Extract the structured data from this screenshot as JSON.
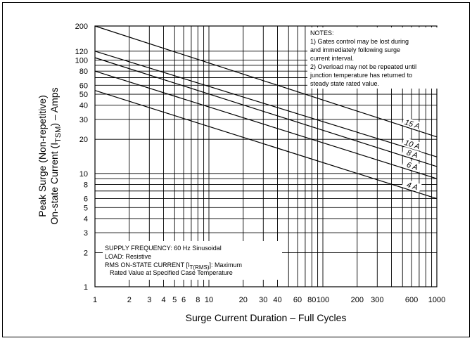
{
  "chart_data": {
    "type": "line",
    "x_scale": "log",
    "y_scale": "log",
    "xlim": [
      1,
      1000
    ],
    "ylim": [
      1,
      200
    ],
    "grid": true,
    "xlabel": "Surge Current Duration – Full Cycles",
    "ylabel_line1": "Peak Surge (Non-repetitive)",
    "ylabel_line2_prefix": "On-state Current (I",
    "ylabel_line2_sub": "TSM",
    "ylabel_line2_suffix": ") – Amps",
    "x_ticks": [
      1,
      2,
      3,
      4,
      5,
      6,
      8,
      10,
      20,
      30,
      40,
      60,
      80,
      100,
      200,
      300,
      600,
      1000
    ],
    "x_tick_labels": [
      "1",
      "2",
      "3",
      "4",
      "5",
      "6",
      "8",
      "10",
      "20",
      "30",
      "40",
      "60",
      "80",
      "100",
      "200",
      "300",
      "600",
      "1000"
    ],
    "y_ticks": [
      1,
      2,
      3,
      4,
      5,
      6,
      8,
      10,
      20,
      30,
      40,
      50,
      60,
      80,
      100,
      120,
      200
    ],
    "y_tick_labels": [
      "1",
      "2",
      "3",
      "4",
      "5",
      "6",
      "8",
      "10",
      "20",
      "30",
      "40",
      "50",
      "60",
      "80",
      "100",
      "120",
      "200"
    ],
    "series": [
      {
        "name": "15 A",
        "x": [
          1,
          1000
        ],
        "y": [
          200,
          21
        ]
      },
      {
        "name": "10 A",
        "x": [
          1,
          1000
        ],
        "y": [
          120,
          14
        ]
      },
      {
        "name": "8 A",
        "x": [
          1,
          1000
        ],
        "y": [
          105,
          11.5
        ]
      },
      {
        "name": "6 A",
        "x": [
          1,
          1000
        ],
        "y": [
          80,
          9
        ]
      },
      {
        "name": "4 A",
        "x": [
          1,
          1000
        ],
        "y": [
          54,
          6
        ]
      }
    ],
    "notes": [
      "NOTES:",
      "1) Gates control may be lost during",
      "and immediately following surge",
      "current interval.",
      "2) Overload may not be repeated until",
      "junction temperature has returned to",
      "steady state rated value."
    ],
    "conditions": {
      "supply": "SUPPLY FREQUENCY: 60 Hz Sinusoidal",
      "load": "LOAD: Resistive",
      "rms_prefix": "RMS ON-STATE CURRENT [I",
      "rms_sub": "T(RMS)",
      "rms_suffix": "]: Maximum",
      "rms_line2": "Rated Value at Specified Case Temperature"
    }
  }
}
